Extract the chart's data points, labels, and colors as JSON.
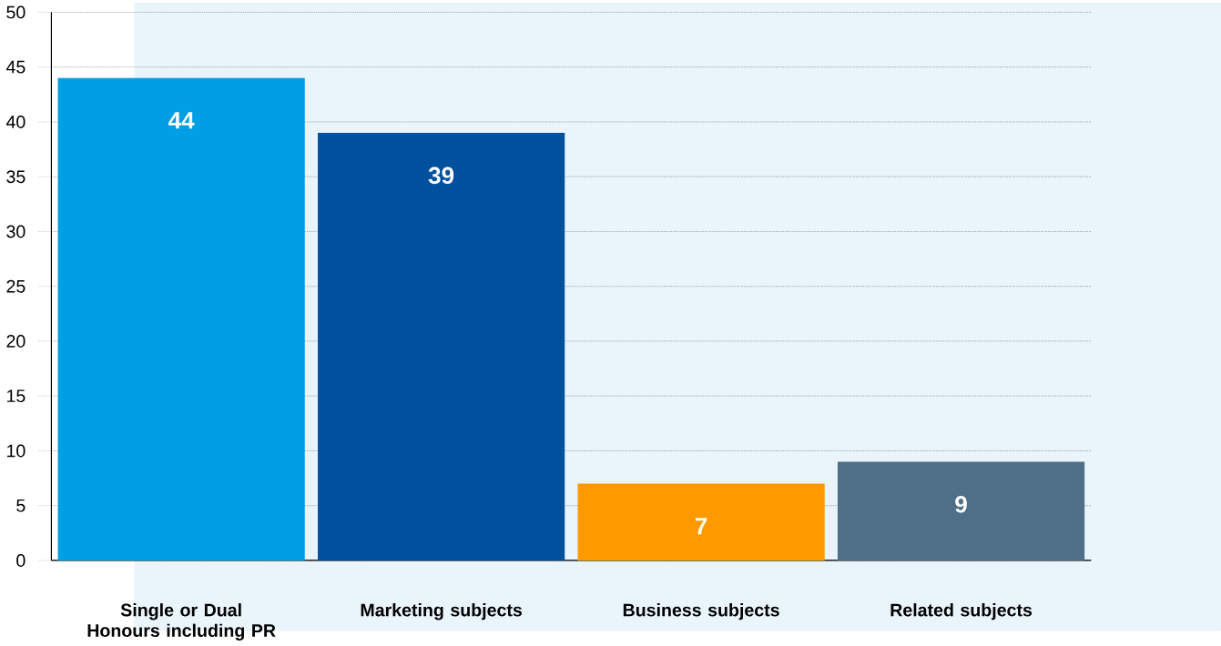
{
  "chart_data": {
    "type": "bar",
    "categories": [
      "Single or Dual Honours including PR",
      "Marketing subjects",
      "Business subjects",
      "Related subjects"
    ],
    "values": [
      44,
      39,
      7,
      9
    ],
    "colors": [
      "#009fe3",
      "#00509e",
      "#ff9900",
      "#4f6f88"
    ],
    "ylim": [
      0,
      50
    ],
    "yticks": [
      0,
      5,
      10,
      15,
      20,
      25,
      30,
      35,
      40,
      45,
      50
    ],
    "grid": "y",
    "data_labels": true
  }
}
